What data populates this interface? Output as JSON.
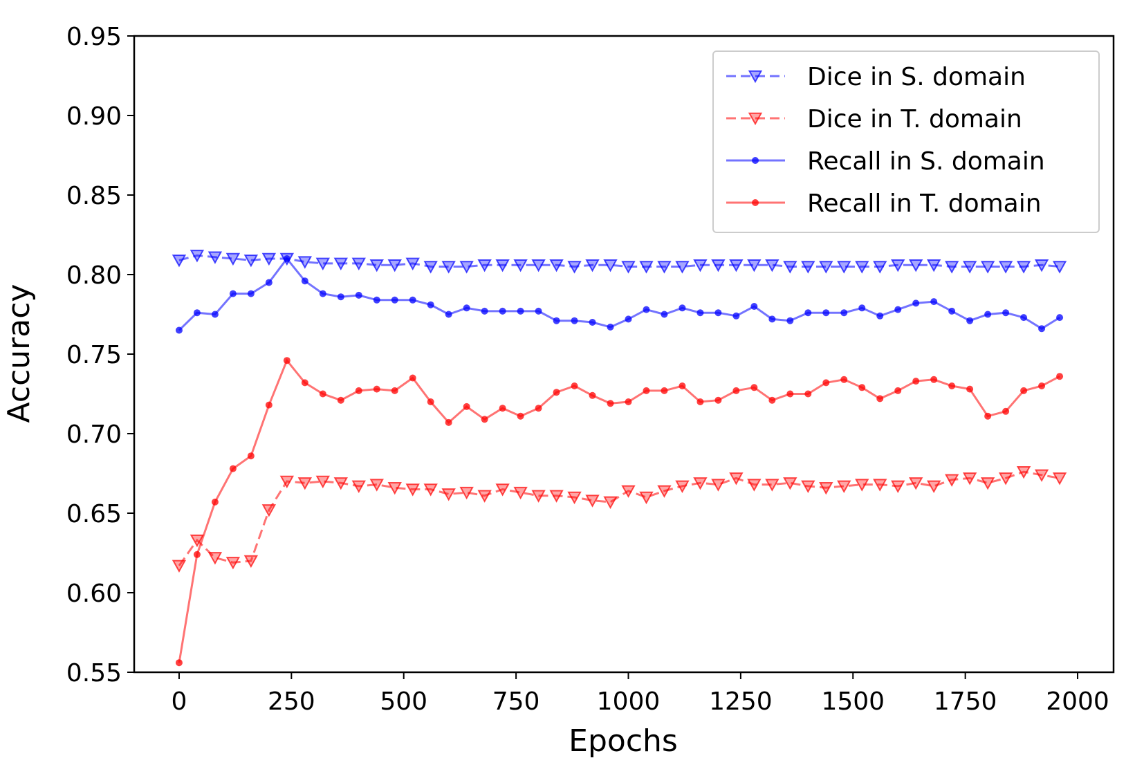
{
  "chart_data": {
    "type": "line",
    "title": "",
    "xlabel": "Epochs",
    "ylabel": "Accuracy",
    "xlim": [
      -100,
      2080
    ],
    "ylim": [
      0.55,
      0.95
    ],
    "xticks": [
      0,
      250,
      500,
      750,
      1000,
      1250,
      1500,
      1750,
      2000
    ],
    "yticks": [
      0.55,
      0.6,
      0.65,
      0.7,
      0.75,
      0.8,
      0.85,
      0.9,
      0.95
    ],
    "xtick_labels": [
      "0",
      "250",
      "500",
      "750",
      "1000",
      "1250",
      "1500",
      "1750",
      "2000"
    ],
    "ytick_labels": [
      "0.55",
      "0.60",
      "0.65",
      "0.70",
      "0.75",
      "0.80",
      "0.85",
      "0.90",
      "0.95"
    ],
    "grid": false,
    "legend_position": "top-right",
    "x": [
      0,
      40,
      80,
      120,
      160,
      200,
      240,
      280,
      320,
      360,
      400,
      440,
      480,
      520,
      560,
      600,
      640,
      680,
      720,
      760,
      800,
      840,
      880,
      920,
      960,
      1000,
      1040,
      1080,
      1120,
      1160,
      1200,
      1240,
      1280,
      1320,
      1360,
      1400,
      1440,
      1480,
      1520,
      1560,
      1600,
      1640,
      1680,
      1720,
      1760,
      1800,
      1840,
      1880,
      1920,
      1960
    ],
    "series": [
      {
        "name": "Dice in S. domain",
        "color": "#0000ff",
        "style": "dashed",
        "marker": "triangle-down",
        "values": [
          0.809,
          0.812,
          0.811,
          0.81,
          0.809,
          0.81,
          0.81,
          0.808,
          0.807,
          0.807,
          0.807,
          0.806,
          0.806,
          0.807,
          0.805,
          0.805,
          0.805,
          0.806,
          0.806,
          0.806,
          0.806,
          0.806,
          0.805,
          0.806,
          0.806,
          0.805,
          0.805,
          0.805,
          0.805,
          0.806,
          0.806,
          0.806,
          0.806,
          0.806,
          0.805,
          0.805,
          0.805,
          0.805,
          0.805,
          0.805,
          0.806,
          0.806,
          0.806,
          0.805,
          0.805,
          0.805,
          0.805,
          0.805,
          0.806,
          0.805
        ]
      },
      {
        "name": "Dice in T. domain",
        "color": "#ff0000",
        "style": "dashed",
        "marker": "triangle-down",
        "values": [
          0.617,
          0.633,
          0.622,
          0.619,
          0.62,
          0.652,
          0.67,
          0.669,
          0.67,
          0.669,
          0.667,
          0.668,
          0.666,
          0.665,
          0.665,
          0.662,
          0.663,
          0.661,
          0.665,
          0.663,
          0.661,
          0.661,
          0.66,
          0.658,
          0.657,
          0.664,
          0.66,
          0.664,
          0.667,
          0.669,
          0.668,
          0.672,
          0.668,
          0.668,
          0.669,
          0.667,
          0.666,
          0.667,
          0.668,
          0.668,
          0.667,
          0.669,
          0.667,
          0.671,
          0.672,
          0.669,
          0.672,
          0.676,
          0.674,
          0.672
        ]
      },
      {
        "name": "Recall in S. domain",
        "color": "#0000ff",
        "style": "solid",
        "marker": "dot",
        "values": [
          0.765,
          0.776,
          0.775,
          0.788,
          0.788,
          0.795,
          0.81,
          0.796,
          0.788,
          0.786,
          0.787,
          0.784,
          0.784,
          0.784,
          0.781,
          0.775,
          0.779,
          0.777,
          0.777,
          0.777,
          0.777,
          0.771,
          0.771,
          0.77,
          0.767,
          0.772,
          0.778,
          0.775,
          0.779,
          0.776,
          0.776,
          0.774,
          0.78,
          0.772,
          0.771,
          0.776,
          0.776,
          0.776,
          0.779,
          0.774,
          0.778,
          0.782,
          0.783,
          0.777,
          0.771,
          0.775,
          0.776,
          0.773,
          0.766,
          0.773
        ]
      },
      {
        "name": "Recall in T. domain",
        "color": "#ff0000",
        "style": "solid",
        "marker": "dot",
        "values": [
          0.556,
          0.624,
          0.657,
          0.678,
          0.686,
          0.718,
          0.746,
          0.732,
          0.725,
          0.721,
          0.727,
          0.728,
          0.727,
          0.735,
          0.72,
          0.707,
          0.717,
          0.709,
          0.716,
          0.711,
          0.716,
          0.726,
          0.73,
          0.724,
          0.719,
          0.72,
          0.727,
          0.727,
          0.73,
          0.72,
          0.721,
          0.727,
          0.729,
          0.721,
          0.725,
          0.725,
          0.732,
          0.734,
          0.729,
          0.722,
          0.727,
          0.733,
          0.734,
          0.73,
          0.728,
          0.711,
          0.714,
          0.727,
          0.73,
          0.736
        ]
      }
    ]
  }
}
